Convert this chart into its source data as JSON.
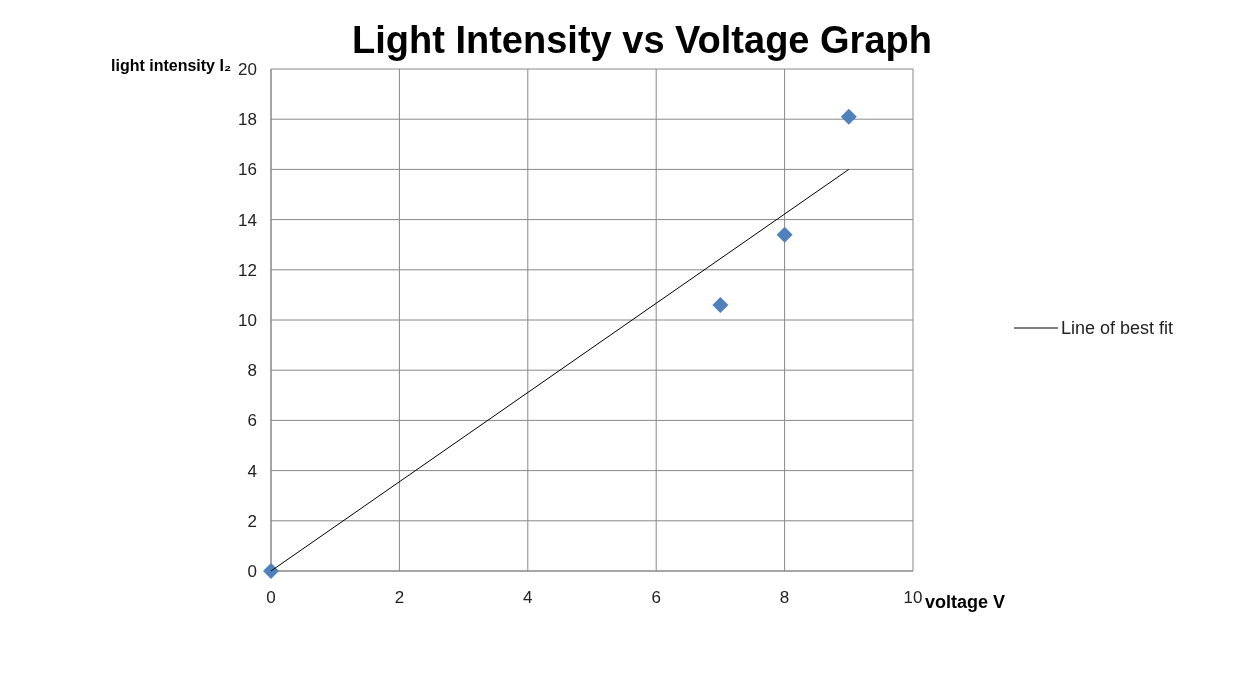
{
  "chart_data": {
    "type": "scatter",
    "title": "Light Intensity vs Voltage Graph",
    "xlabel": "voltage V",
    "ylabel": "light intensity I₂",
    "xlim": [
      0,
      10
    ],
    "xticks": [
      0,
      2,
      4,
      6,
      8,
      10
    ],
    "ylim": [
      0,
      20
    ],
    "yticks": [
      0,
      2,
      4,
      6,
      8,
      10,
      12,
      14,
      16,
      18,
      20
    ],
    "grid": true,
    "legend": "right",
    "series": [
      {
        "color": "#4f81bd",
        "marker": "diamond",
        "x": [
          0,
          7,
          8,
          9
        ],
        "values": [
          0,
          10.6,
          13.4,
          18.1
        ]
      },
      {
        "type": "line",
        "name": "Line of best fit",
        "color": "#000000",
        "marker": "none",
        "x": [
          0,
          9
        ],
        "values": [
          0,
          16
        ]
      }
    ]
  }
}
